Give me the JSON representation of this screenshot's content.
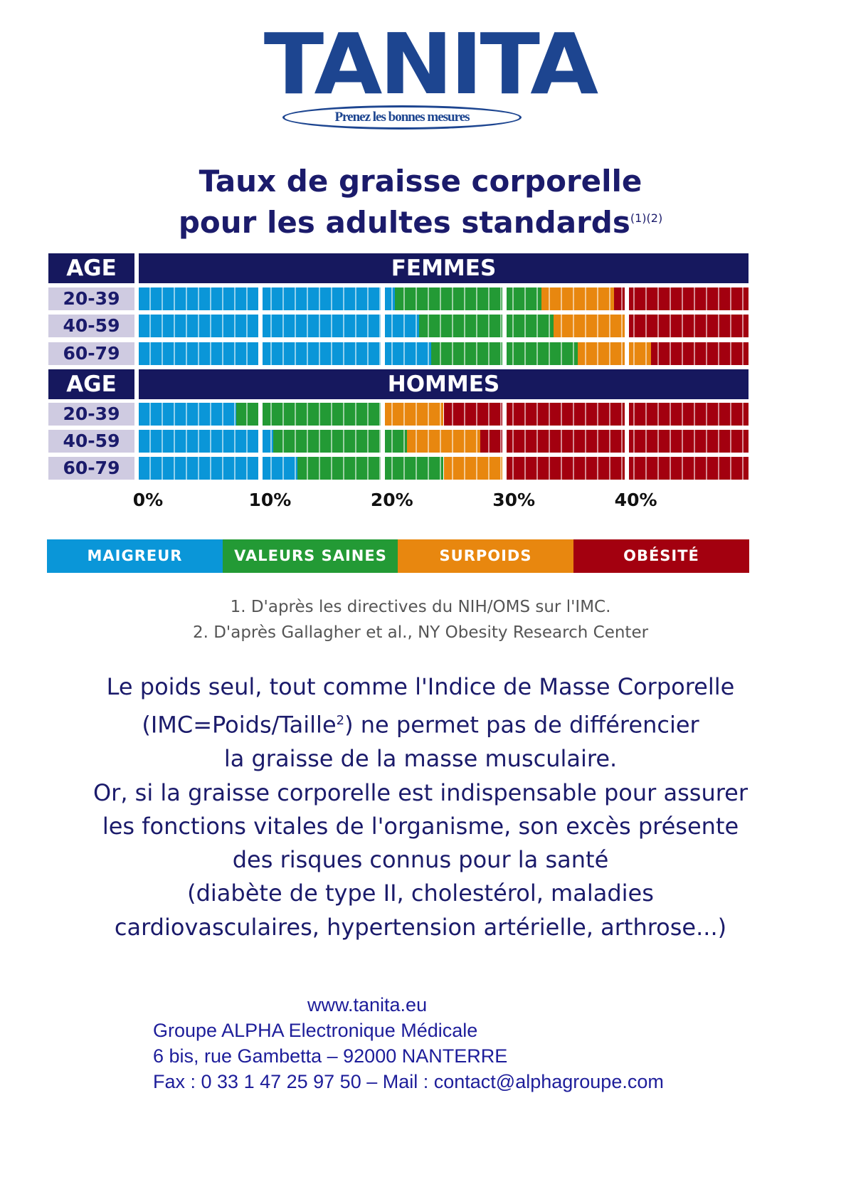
{
  "logo": {
    "brand": "TANITA",
    "tagline": "Prenez les bonnes mesures"
  },
  "title": {
    "line1": "Taux de graisse corporelle",
    "line2": "pour les adultes standards",
    "refs": "(1)(2)"
  },
  "colors": {
    "maigreur": "#0a96d8",
    "valeurs_saines": "#239a35",
    "surpoids": "#e8870f",
    "obesite": "#a3000f",
    "header": "#16185e"
  },
  "chart_data": {
    "type": "stacked-bar",
    "xlim": [
      0,
      50
    ],
    "tick_labels": [
      "0%",
      "10%",
      "20%",
      "30%",
      "40%"
    ],
    "groups": [
      {
        "age_label": "AGE",
        "title": "FEMMES",
        "rows": [
          {
            "age": "20-39",
            "thresholds": [
              21,
              33,
              39
            ]
          },
          {
            "age": "40-59",
            "thresholds": [
              23,
              34,
              40
            ]
          },
          {
            "age": "60-79",
            "thresholds": [
              24,
              36,
              42
            ]
          }
        ]
      },
      {
        "age_label": "AGE",
        "title": "HOMMES",
        "rows": [
          {
            "age": "20-39",
            "thresholds": [
              8,
              20,
              25
            ]
          },
          {
            "age": "40-59",
            "thresholds": [
              11,
              22,
              28
            ]
          },
          {
            "age": "60-79",
            "thresholds": [
              13,
              25,
              30
            ]
          }
        ]
      }
    ],
    "legend": [
      "MAIGREUR",
      "VALEURS SAINES",
      "SURPOIDS",
      "OBÉSITÉ"
    ]
  },
  "notes": [
    "1. D'après les directives du NIH/OMS sur l'IMC.",
    "2. D'après Gallagher et al., NY Obesity Research Center"
  ],
  "paragraph": {
    "p1": "Le poids seul, tout comme l'Indice de Masse Corporelle",
    "p2a": "(IMC=Poids/Taille",
    "p2sup": "2",
    "p2b": ") ne permet pas de différencier",
    "p3": "la graisse de la masse musculaire.",
    "p4": "Or, si la graisse corporelle est indispensable pour assurer",
    "p5": "les fonctions vitales de l'organisme, son excès présente",
    "p6": "des risques connus pour la santé",
    "p7": "(diabète de type II, cholestérol, maladies",
    "p8": "cardiovasculaires, hypertension artérielle, arthrose...)"
  },
  "footer": {
    "website": "www.tanita.eu",
    "company": "Groupe ALPHA Electronique Médicale",
    "address": "6 bis, rue Gambetta – 92000 NANTERRE",
    "contact": "Fax : 0 33 1 47 25 97 50 – Mail : contact@alphagroupe.com"
  }
}
